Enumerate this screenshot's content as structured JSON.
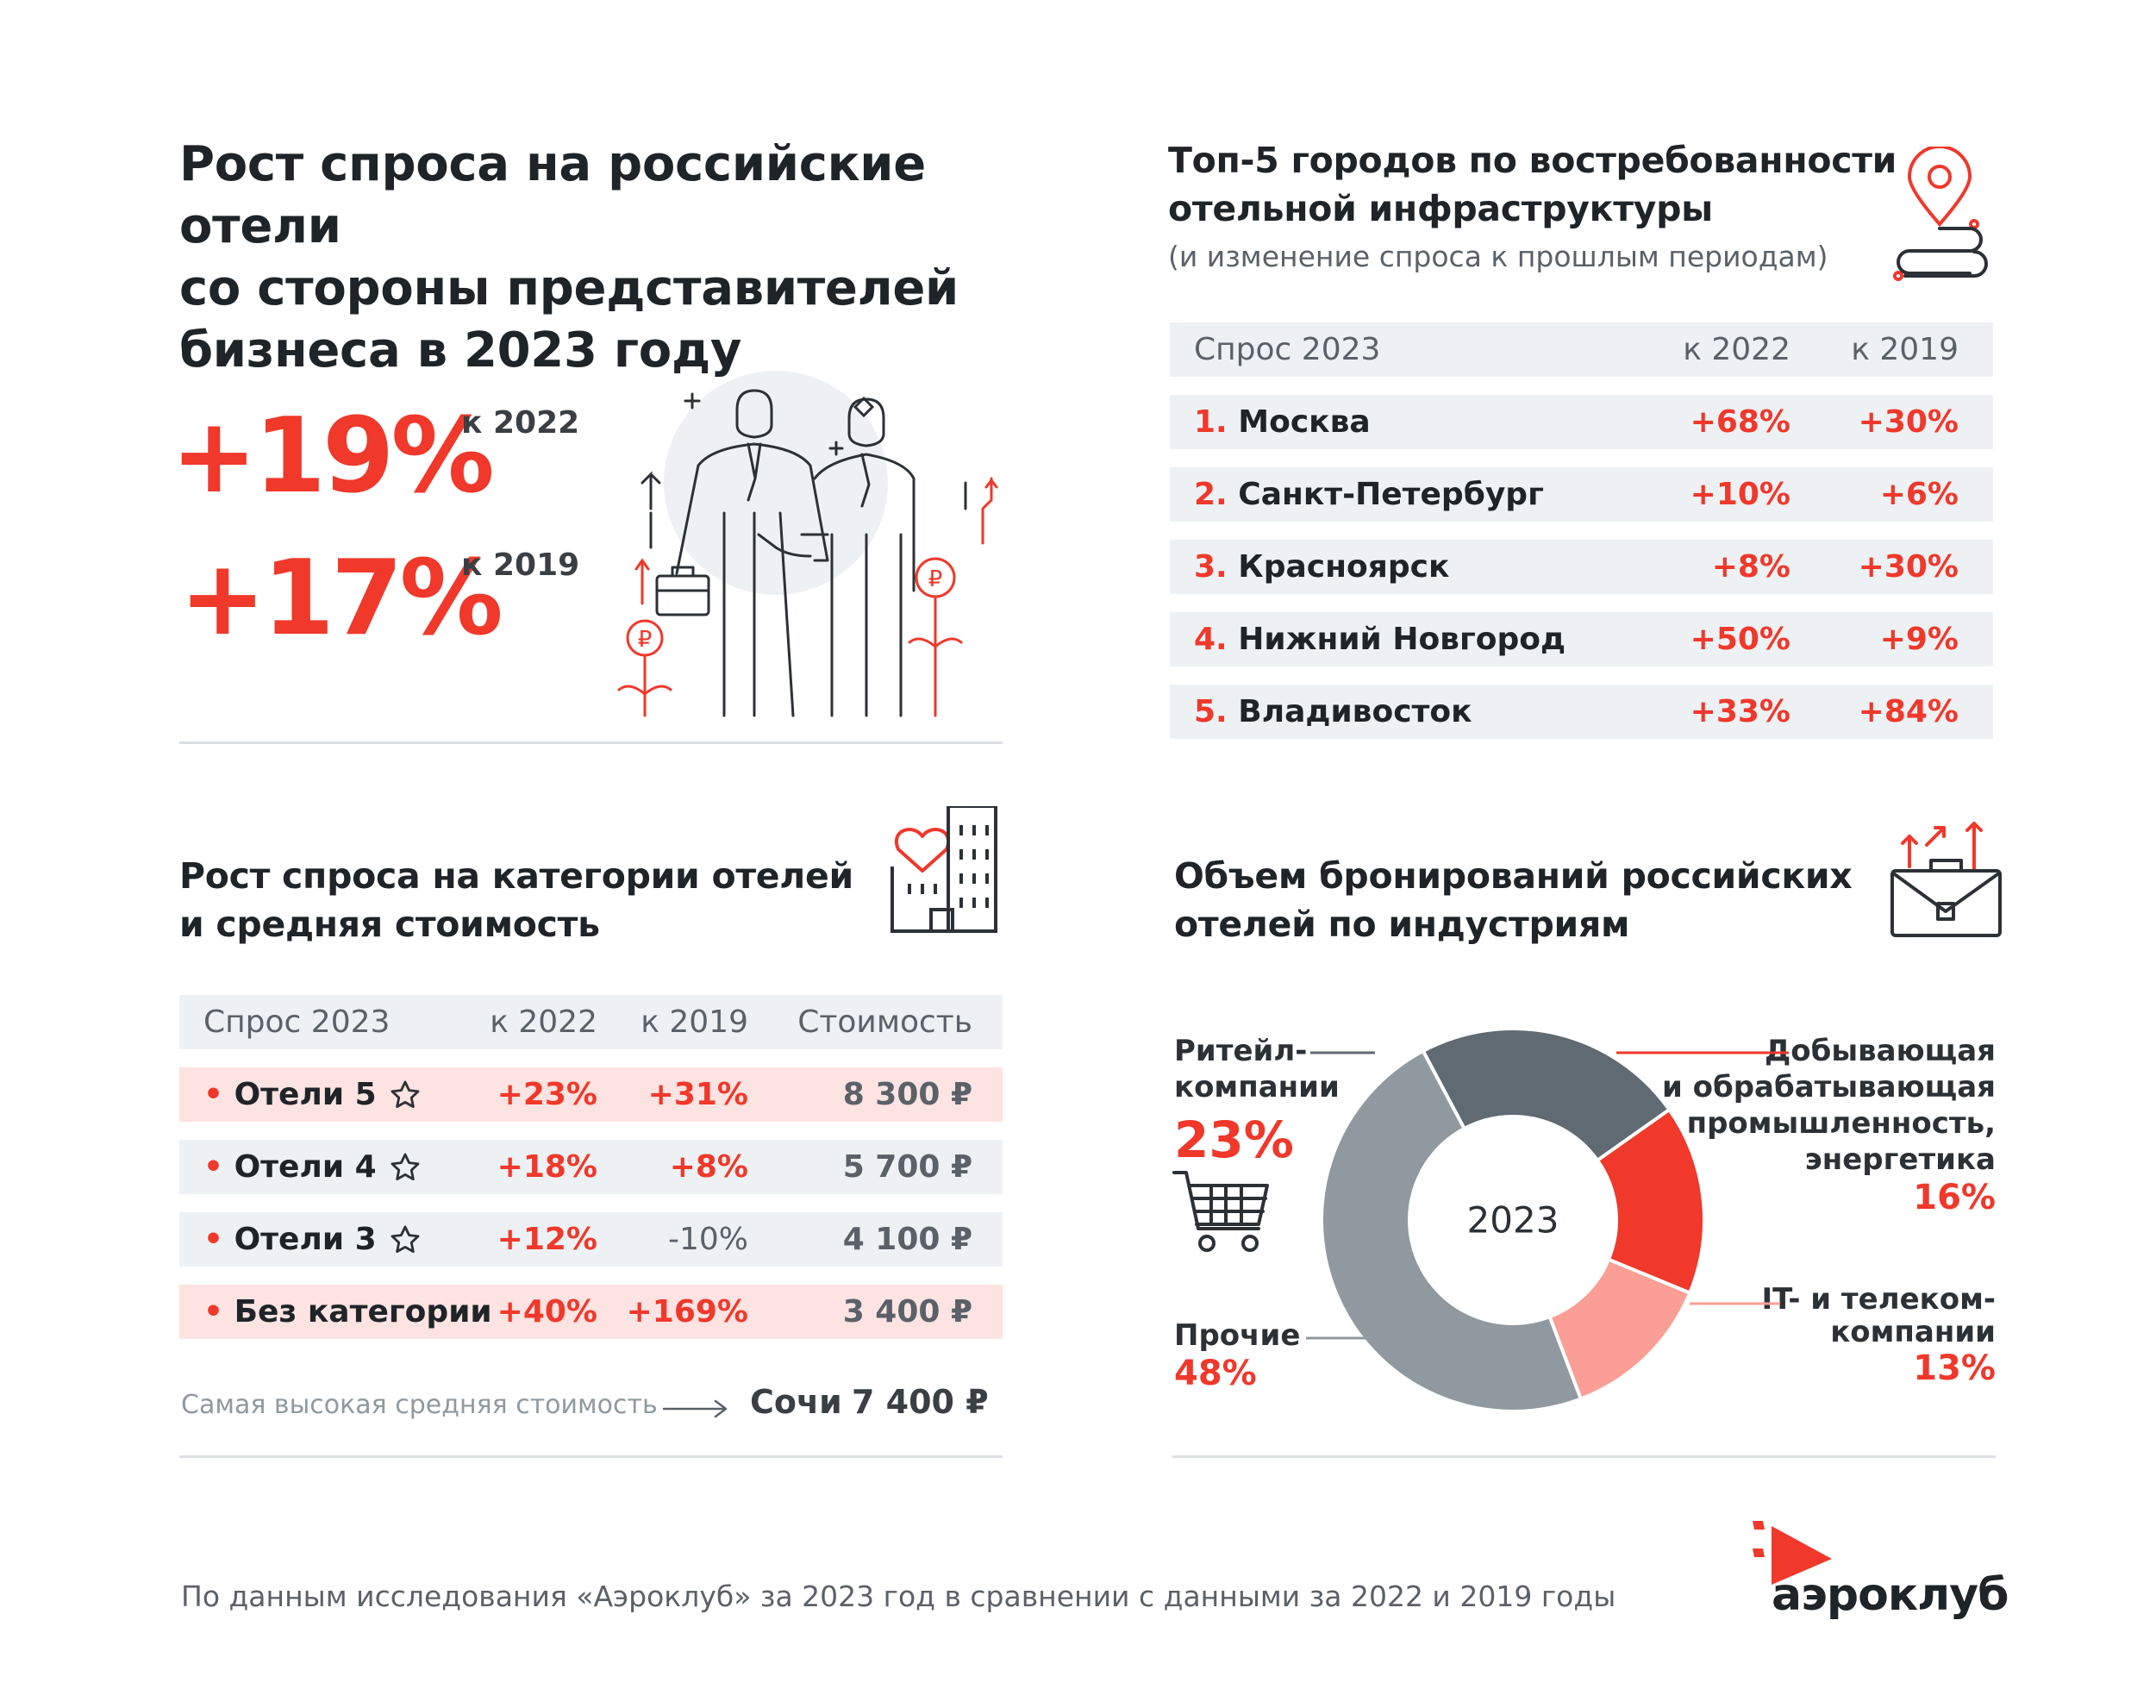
{
  "main": {
    "title_line1": "Рост спроса на российские отели",
    "title_line2": "со стороны представителей",
    "title_line3": "бизнеса в 2023 году",
    "stat1_value": "+19%",
    "stat1_label": "к 2022",
    "stat2_value": "+17%",
    "stat2_label": "к 2019"
  },
  "cities": {
    "title_line1": "Топ-5 городов по востребованности",
    "title_line2": "отельной инфраструктуры",
    "subtitle": "(и изменение спроса к прошлым периодам)",
    "headers": [
      "Спрос 2023",
      "к 2022",
      "к 2019"
    ],
    "rows": [
      {
        "rank": "1.",
        "name": "Москва",
        "v2022": "+68%",
        "v2019": "+30%"
      },
      {
        "rank": "2.",
        "name": "Санкт-Петербург",
        "v2022": "+10%",
        "v2019": "+6%"
      },
      {
        "rank": "3.",
        "name": "Красноярск",
        "v2022": "+8%",
        "v2019": "+30%"
      },
      {
        "rank": "4.",
        "name": "Нижний Новгород",
        "v2022": "+50%",
        "v2019": "+9%"
      },
      {
        "rank": "5.",
        "name": "Владивосток",
        "v2022": "+33%",
        "v2019": "+84%"
      }
    ]
  },
  "categories": {
    "title_line1": "Рост спроса на категории отелей",
    "title_line2": "и средняя стоимость",
    "headers": [
      "Спрос 2023",
      "к 2022",
      "к 2019",
      "Стоимость"
    ],
    "rows": [
      {
        "bullet": "•",
        "name": "Отели 5",
        "v2022": "+23%",
        "v2019": "+31%",
        "price": "8 300 ₽"
      },
      {
        "bullet": "•",
        "name": "Отели 4",
        "v2022": "+18%",
        "v2019": "+8%",
        "price": "5 700 ₽"
      },
      {
        "bullet": "•",
        "name": "Отели 3",
        "v2022": "+12%",
        "v2019": "-10%",
        "price": "4 100 ₽"
      },
      {
        "bullet": "•",
        "name": "Без категории",
        "v2022": "+40%",
        "v2019": "+169%",
        "price": "3 400 ₽"
      }
    ],
    "note_label": "Самая высокая средняя стоимость",
    "note_city": "Сочи",
    "note_price": "7 400 ₽"
  },
  "chart_data": {
    "type": "pie",
    "center_label": "2023",
    "slices": [
      {
        "name_line1": "Ритейл-",
        "name_line2": "компании",
        "value": 23,
        "label": "23%",
        "color": "#5f6a73"
      },
      {
        "name_line1": "Добывающая",
        "name_line2": "и обрабатывающая",
        "name_line3": "промышленность,",
        "name_line4": "энергетика",
        "value": 16,
        "label": "16%",
        "color": "#f0382b"
      },
      {
        "name_line1": "IT- и телеком-",
        "name_line2": "компании",
        "value": 13,
        "label": "13%",
        "color": "#fb9f96"
      },
      {
        "name_line1": "Прочие",
        "value": 48,
        "label": "48%",
        "color": "#8f999f"
      }
    ]
  },
  "industries": {
    "title_line1": "Объем бронирований российских",
    "title_line2": "отелей по индустриям"
  },
  "footer": {
    "source": "По данным исследования «Аэроклуб» за 2023 год в сравнении с данными за 2022 и 2019 годы",
    "logo_text": "аэроклуб"
  },
  "colors": {
    "accent": "#f0382b",
    "dark": "#2c3136",
    "table_bg": "#edf1f4",
    "pink_bg": "#fde3e1"
  }
}
